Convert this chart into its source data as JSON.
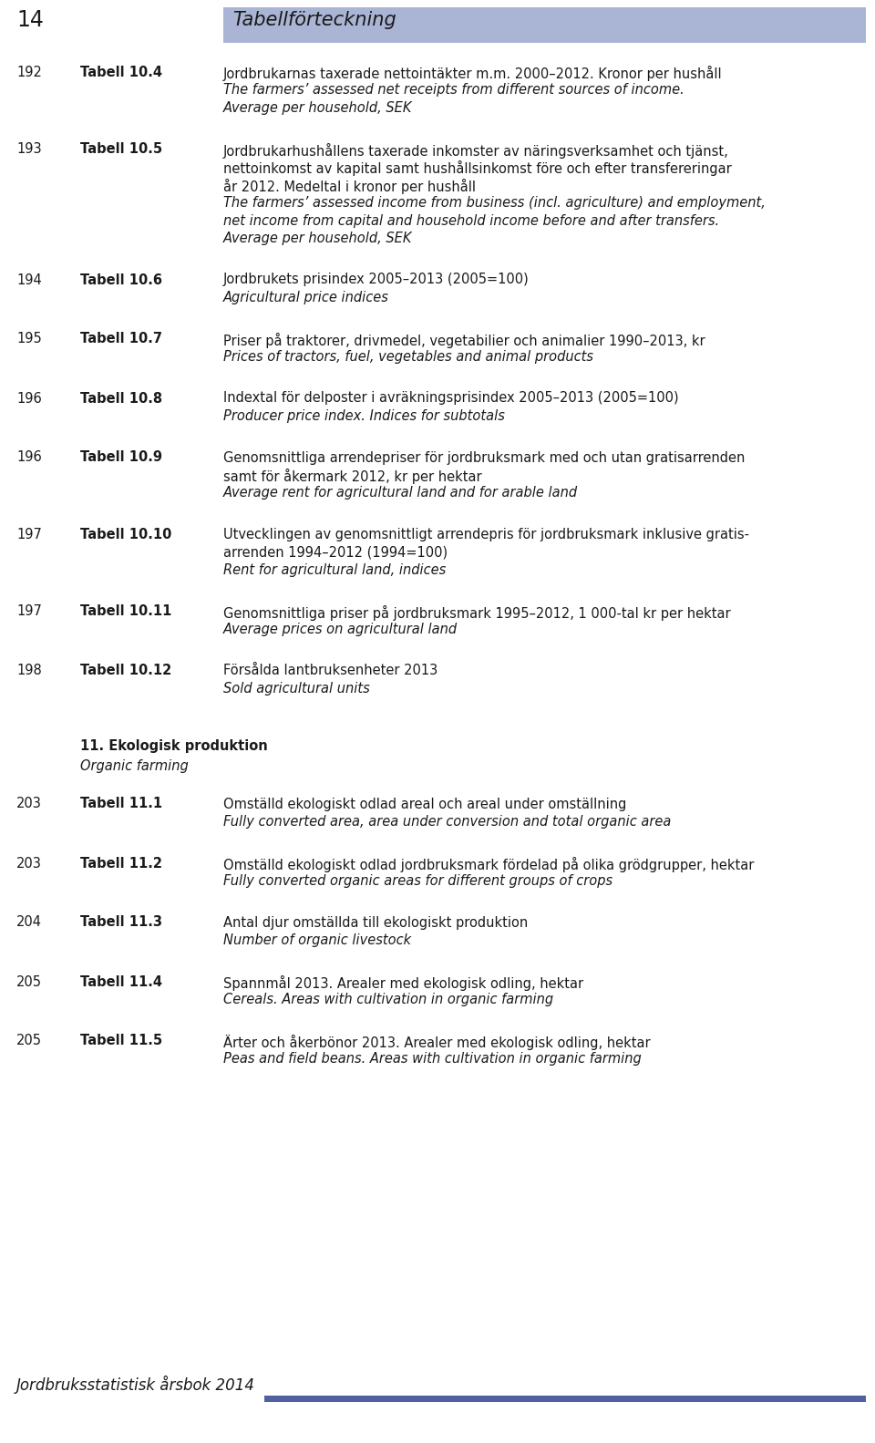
{
  "page_number": "14",
  "header_title": "Tabellförteckning",
  "header_bar_color": "#aab4d4",
  "footer_bar_color": "#5060a0",
  "footer_text": "Jordbruksstatistisk årsbok 2014",
  "background_color": "#ffffff",
  "text_color": "#1a1a1a",
  "entries": [
    {
      "page": "192",
      "table": "Tabell 10.4",
      "title_sv": "Jordbrukarnas taxerade nettointäkter m.m. 2000–2012. Kronor per hushåll",
      "title_en": "The farmers’ assessed net receipts from different sources of income.\nAverage per household, SEK"
    },
    {
      "page": "193",
      "table": "Tabell 10.5",
      "title_sv": "Jordbrukarhushållens taxerade inkomster av näringsverksamhet och tjänst,\nnettoinkomst av kapital samt hushållsinkomst före och efter transfereringar\når 2012. Medeltal i kronor per hushåll",
      "title_en": "The farmers’ assessed income from business (incl. agriculture) and employment,\nnet income from capital and household income before and after transfers.\nAverage per household, SEK"
    },
    {
      "page": "194",
      "table": "Tabell 10.6",
      "title_sv": "Jordbrukets prisindex 2005–2013 (2005=100)",
      "title_en": "Agricultural price indices"
    },
    {
      "page": "195",
      "table": "Tabell 10.7",
      "title_sv": "Priser på traktorer, drivmedel, vegetabilier och animalier 1990–2013, kr",
      "title_en": "Prices of tractors, fuel, vegetables and animal products"
    },
    {
      "page": "196",
      "table": "Tabell 10.8",
      "title_sv": "Indextal för delposter i avräkningsprisindex 2005–2013 (2005=100)",
      "title_en": "Producer price index. Indices for subtotals"
    },
    {
      "page": "196",
      "table": "Tabell 10.9",
      "title_sv": "Genomsnittliga arrendepriser för jordbruksmark med och utan gratisarrenden\nsamt för åkermark 2012, kr per hektar",
      "title_en": "Average rent for agricultural land and for arable land"
    },
    {
      "page": "197",
      "table": "Tabell 10.10",
      "title_sv": "Utvecklingen av genomsnittligt arrendepris för jordbruksmark inklusive gratis-\narrenden 1994–2012 (1994=100)",
      "title_en": "Rent for agricultural land, indices"
    },
    {
      "page": "197",
      "table": "Tabell 10.11",
      "title_sv": "Genomsnittliga priser på jordbruksmark 1995–2012, 1 000-tal kr per hektar",
      "title_en": "Average prices on agricultural land"
    },
    {
      "page": "198",
      "table": "Tabell 10.12",
      "title_sv": "Försålda lantbruksenheter 2013",
      "title_en": "Sold agricultural units"
    },
    {
      "page": "",
      "table": "",
      "title_sv": "11. Ekologisk produktion",
      "title_en": "Organic farming",
      "is_section": true
    },
    {
      "page": "203",
      "table": "Tabell 11.1",
      "title_sv": "Omställd ekologiskt odlad areal och areal under omställning",
      "title_en": "Fully converted area, area under conversion and total organic area"
    },
    {
      "page": "203",
      "table": "Tabell 11.2",
      "title_sv": "Omställd ekologiskt odlad jordbruksmark fördelad på olika grödgrupper, hektar",
      "title_en": "Fully converted organic areas for different groups of crops"
    },
    {
      "page": "204",
      "table": "Tabell 11.3",
      "title_sv": "Antal djur omställda till ekologiskt produktion",
      "title_en": "Number of organic livestock"
    },
    {
      "page": "205",
      "table": "Tabell 11.4",
      "title_sv": "Spannmål 2013. Arealer med ekologisk odling, hektar",
      "title_en": "Cereals. Areas with cultivation in organic farming"
    },
    {
      "page": "205",
      "table": "Tabell 11.5",
      "title_sv": "Ärter och åkerbönor 2013. Arealer med ekologisk odling, hektar",
      "title_en": "Peas and field beans. Areas with cultivation in organic farming"
    }
  ]
}
